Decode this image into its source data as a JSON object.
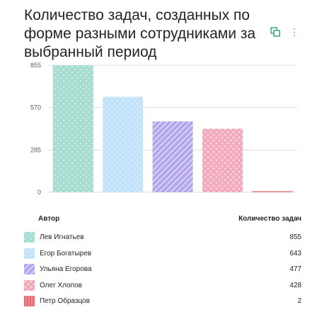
{
  "title": "Количество задач, созданных по форме разными сотрудниками за выбранный период",
  "icons": {
    "focus": "focus-mode-icon",
    "more": "more-options-icon"
  },
  "table": {
    "header_author": "Автор",
    "header_count": "Количество задач",
    "rows": [
      {
        "name": "Лев Игнатьев",
        "value": "855",
        "color": "#a6ddd0"
      },
      {
        "name": "Егор Богатырев",
        "value": "643",
        "color": "#c2e3fb"
      },
      {
        "name": "Ульяна Егорова",
        "value": "477",
        "color": "#b3a6ec"
      },
      {
        "name": "Олег Хлопов",
        "value": "428",
        "color": "#f1a8b9"
      },
      {
        "name": "Петр Образцов",
        "value": "2",
        "color": "#e5676e"
      }
    ]
  },
  "chart_data": {
    "type": "bar",
    "title": "Количество задач, созданных по форме разными сотрудниками за выбранный период",
    "xlabel": "",
    "ylabel": "",
    "categories": [
      "Лев Игнатьев",
      "Егор Богатырев",
      "Ульяна Егорова",
      "Олег Хлопов",
      "Петр Образцов"
    ],
    "values": [
      855,
      643,
      477,
      428,
      2
    ],
    "colors": [
      "#a6ddd0",
      "#c2e3fb",
      "#b3a6ec",
      "#f1a8b9",
      "#e5676e"
    ],
    "yticks": [
      "0",
      "285",
      "570",
      "855"
    ],
    "ylim": [
      0,
      855
    ],
    "grid": true,
    "legend": "table-below"
  }
}
